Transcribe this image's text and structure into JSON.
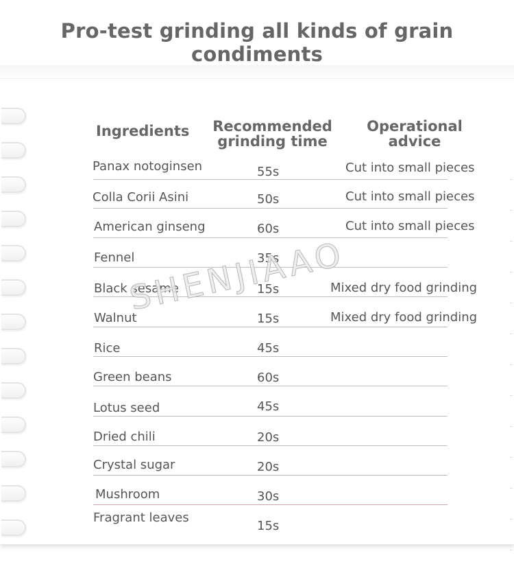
{
  "title": "Pro-test grinding all kinds of grain condiments",
  "table": {
    "headers": {
      "ingredients": "Ingredients",
      "time_line1": "Recommended",
      "time_line2": "grinding time",
      "advice_line1": "Operational",
      "advice_line2": "advice"
    },
    "rows": [
      {
        "ingredient": "Panax notoginsen",
        "time": "55s",
        "advice": "Cut into small pieces"
      },
      {
        "ingredient": "Colla Corii Asini",
        "time": "50s",
        "advice": "Cut into small pieces"
      },
      {
        "ingredient": "American ginseng",
        "time": "60s",
        "advice": "Cut into small pieces"
      },
      {
        "ingredient": "Fennel",
        "time": "35s",
        "advice": ""
      },
      {
        "ingredient": "Black sesame",
        "time": "15s",
        "advice": "Mixed dry food grinding"
      },
      {
        "ingredient": "Walnut",
        "time": "15s",
        "advice": "Mixed dry food grinding"
      },
      {
        "ingredient": "Rice",
        "time": "45s",
        "advice": ""
      },
      {
        "ingredient": "Green beans",
        "time": "60s",
        "advice": ""
      },
      {
        "ingredient": "Lotus seed",
        "time": "45s",
        "advice": ""
      },
      {
        "ingredient": "Dried chili",
        "time": "20s",
        "advice": ""
      },
      {
        "ingredient": "Crystal sugar",
        "time": "20s",
        "advice": ""
      },
      {
        "ingredient": "Mushroom",
        "time": "30s",
        "advice": ""
      },
      {
        "ingredient": "Fragrant leaves",
        "time": "15s",
        "advice": ""
      }
    ]
  },
  "watermark": "SHENJIAAO"
}
